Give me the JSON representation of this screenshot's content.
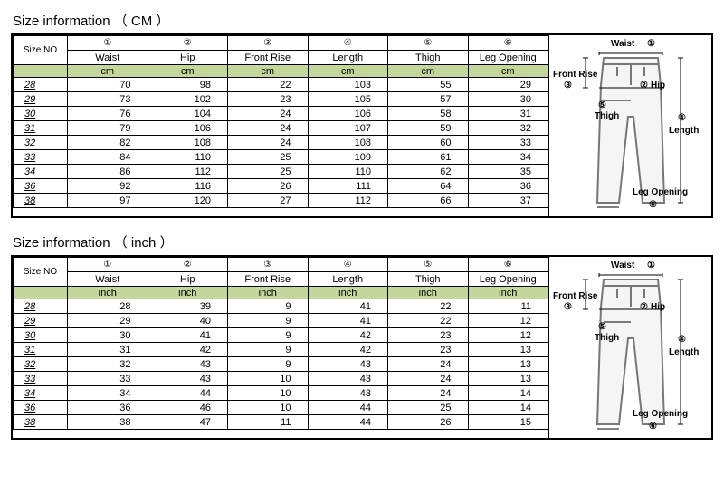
{
  "sections": [
    {
      "title": "Size information （ CM ）",
      "unit": "cm",
      "columns": [
        {
          "num": "①",
          "label": "Waist"
        },
        {
          "num": "②",
          "label": "Hip"
        },
        {
          "num": "③",
          "label": "Front Rise"
        },
        {
          "num": "④",
          "label": "Length"
        },
        {
          "num": "⑤",
          "label": "Thigh"
        },
        {
          "num": "⑥",
          "label": "Leg Opening"
        }
      ],
      "sizeNoLabel": "Size NO",
      "rows": [
        {
          "size": "28",
          "vals": [
            "70",
            "98",
            "22",
            "103",
            "55",
            "29"
          ]
        },
        {
          "size": "29",
          "vals": [
            "73",
            "102",
            "23",
            "105",
            "57",
            "30"
          ]
        },
        {
          "size": "30",
          "vals": [
            "76",
            "104",
            "24",
            "106",
            "58",
            "31"
          ]
        },
        {
          "size": "31",
          "vals": [
            "79",
            "106",
            "24",
            "107",
            "59",
            "32"
          ]
        },
        {
          "size": "32",
          "vals": [
            "82",
            "108",
            "24",
            "108",
            "60",
            "33"
          ]
        },
        {
          "size": "33",
          "vals": [
            "84",
            "110",
            "25",
            "109",
            "61",
            "34"
          ]
        },
        {
          "size": "34",
          "vals": [
            "86",
            "112",
            "25",
            "110",
            "62",
            "35"
          ]
        },
        {
          "size": "36",
          "vals": [
            "92",
            "116",
            "26",
            "111",
            "64",
            "36"
          ]
        },
        {
          "size": "38",
          "vals": [
            "97",
            "120",
            "27",
            "112",
            "66",
            "37"
          ]
        }
      ]
    },
    {
      "title": "Size information （ inch ）",
      "unit": "inch",
      "columns": [
        {
          "num": "①",
          "label": "Waist"
        },
        {
          "num": "②",
          "label": "Hip"
        },
        {
          "num": "③",
          "label": "Front Rise"
        },
        {
          "num": "④",
          "label": "Length"
        },
        {
          "num": "⑤",
          "label": "Thigh"
        },
        {
          "num": "⑥",
          "label": "Leg Opening"
        }
      ],
      "sizeNoLabel": "Size NO",
      "rows": [
        {
          "size": "28",
          "vals": [
            "28",
            "39",
            "9",
            "41",
            "22",
            "11"
          ]
        },
        {
          "size": "29",
          "vals": [
            "29",
            "40",
            "9",
            "41",
            "22",
            "12"
          ]
        },
        {
          "size": "30",
          "vals": [
            "30",
            "41",
            "9",
            "42",
            "23",
            "12"
          ]
        },
        {
          "size": "31",
          "vals": [
            "31",
            "42",
            "9",
            "42",
            "23",
            "13"
          ]
        },
        {
          "size": "32",
          "vals": [
            "32",
            "43",
            "9",
            "43",
            "24",
            "13"
          ]
        },
        {
          "size": "33",
          "vals": [
            "33",
            "43",
            "10",
            "43",
            "24",
            "13"
          ]
        },
        {
          "size": "34",
          "vals": [
            "34",
            "44",
            "10",
            "43",
            "24",
            "14"
          ]
        },
        {
          "size": "36",
          "vals": [
            "36",
            "46",
            "10",
            "44",
            "25",
            "14"
          ]
        },
        {
          "size": "38",
          "vals": [
            "38",
            "47",
            "11",
            "44",
            "26",
            "15"
          ]
        }
      ]
    }
  ],
  "diagram": {
    "labels": {
      "waist": "Waist",
      "hip": "Hip",
      "frontRise": "Front Rise",
      "length": "Length",
      "thigh": "Thigh",
      "legOpening": "Leg Opening",
      "n1": "①",
      "n2": "②",
      "n3": "③",
      "n4": "④",
      "n5": "⑤",
      "n6": "⑥"
    },
    "colors": {
      "outline": "#888",
      "arrow": "#000"
    }
  }
}
